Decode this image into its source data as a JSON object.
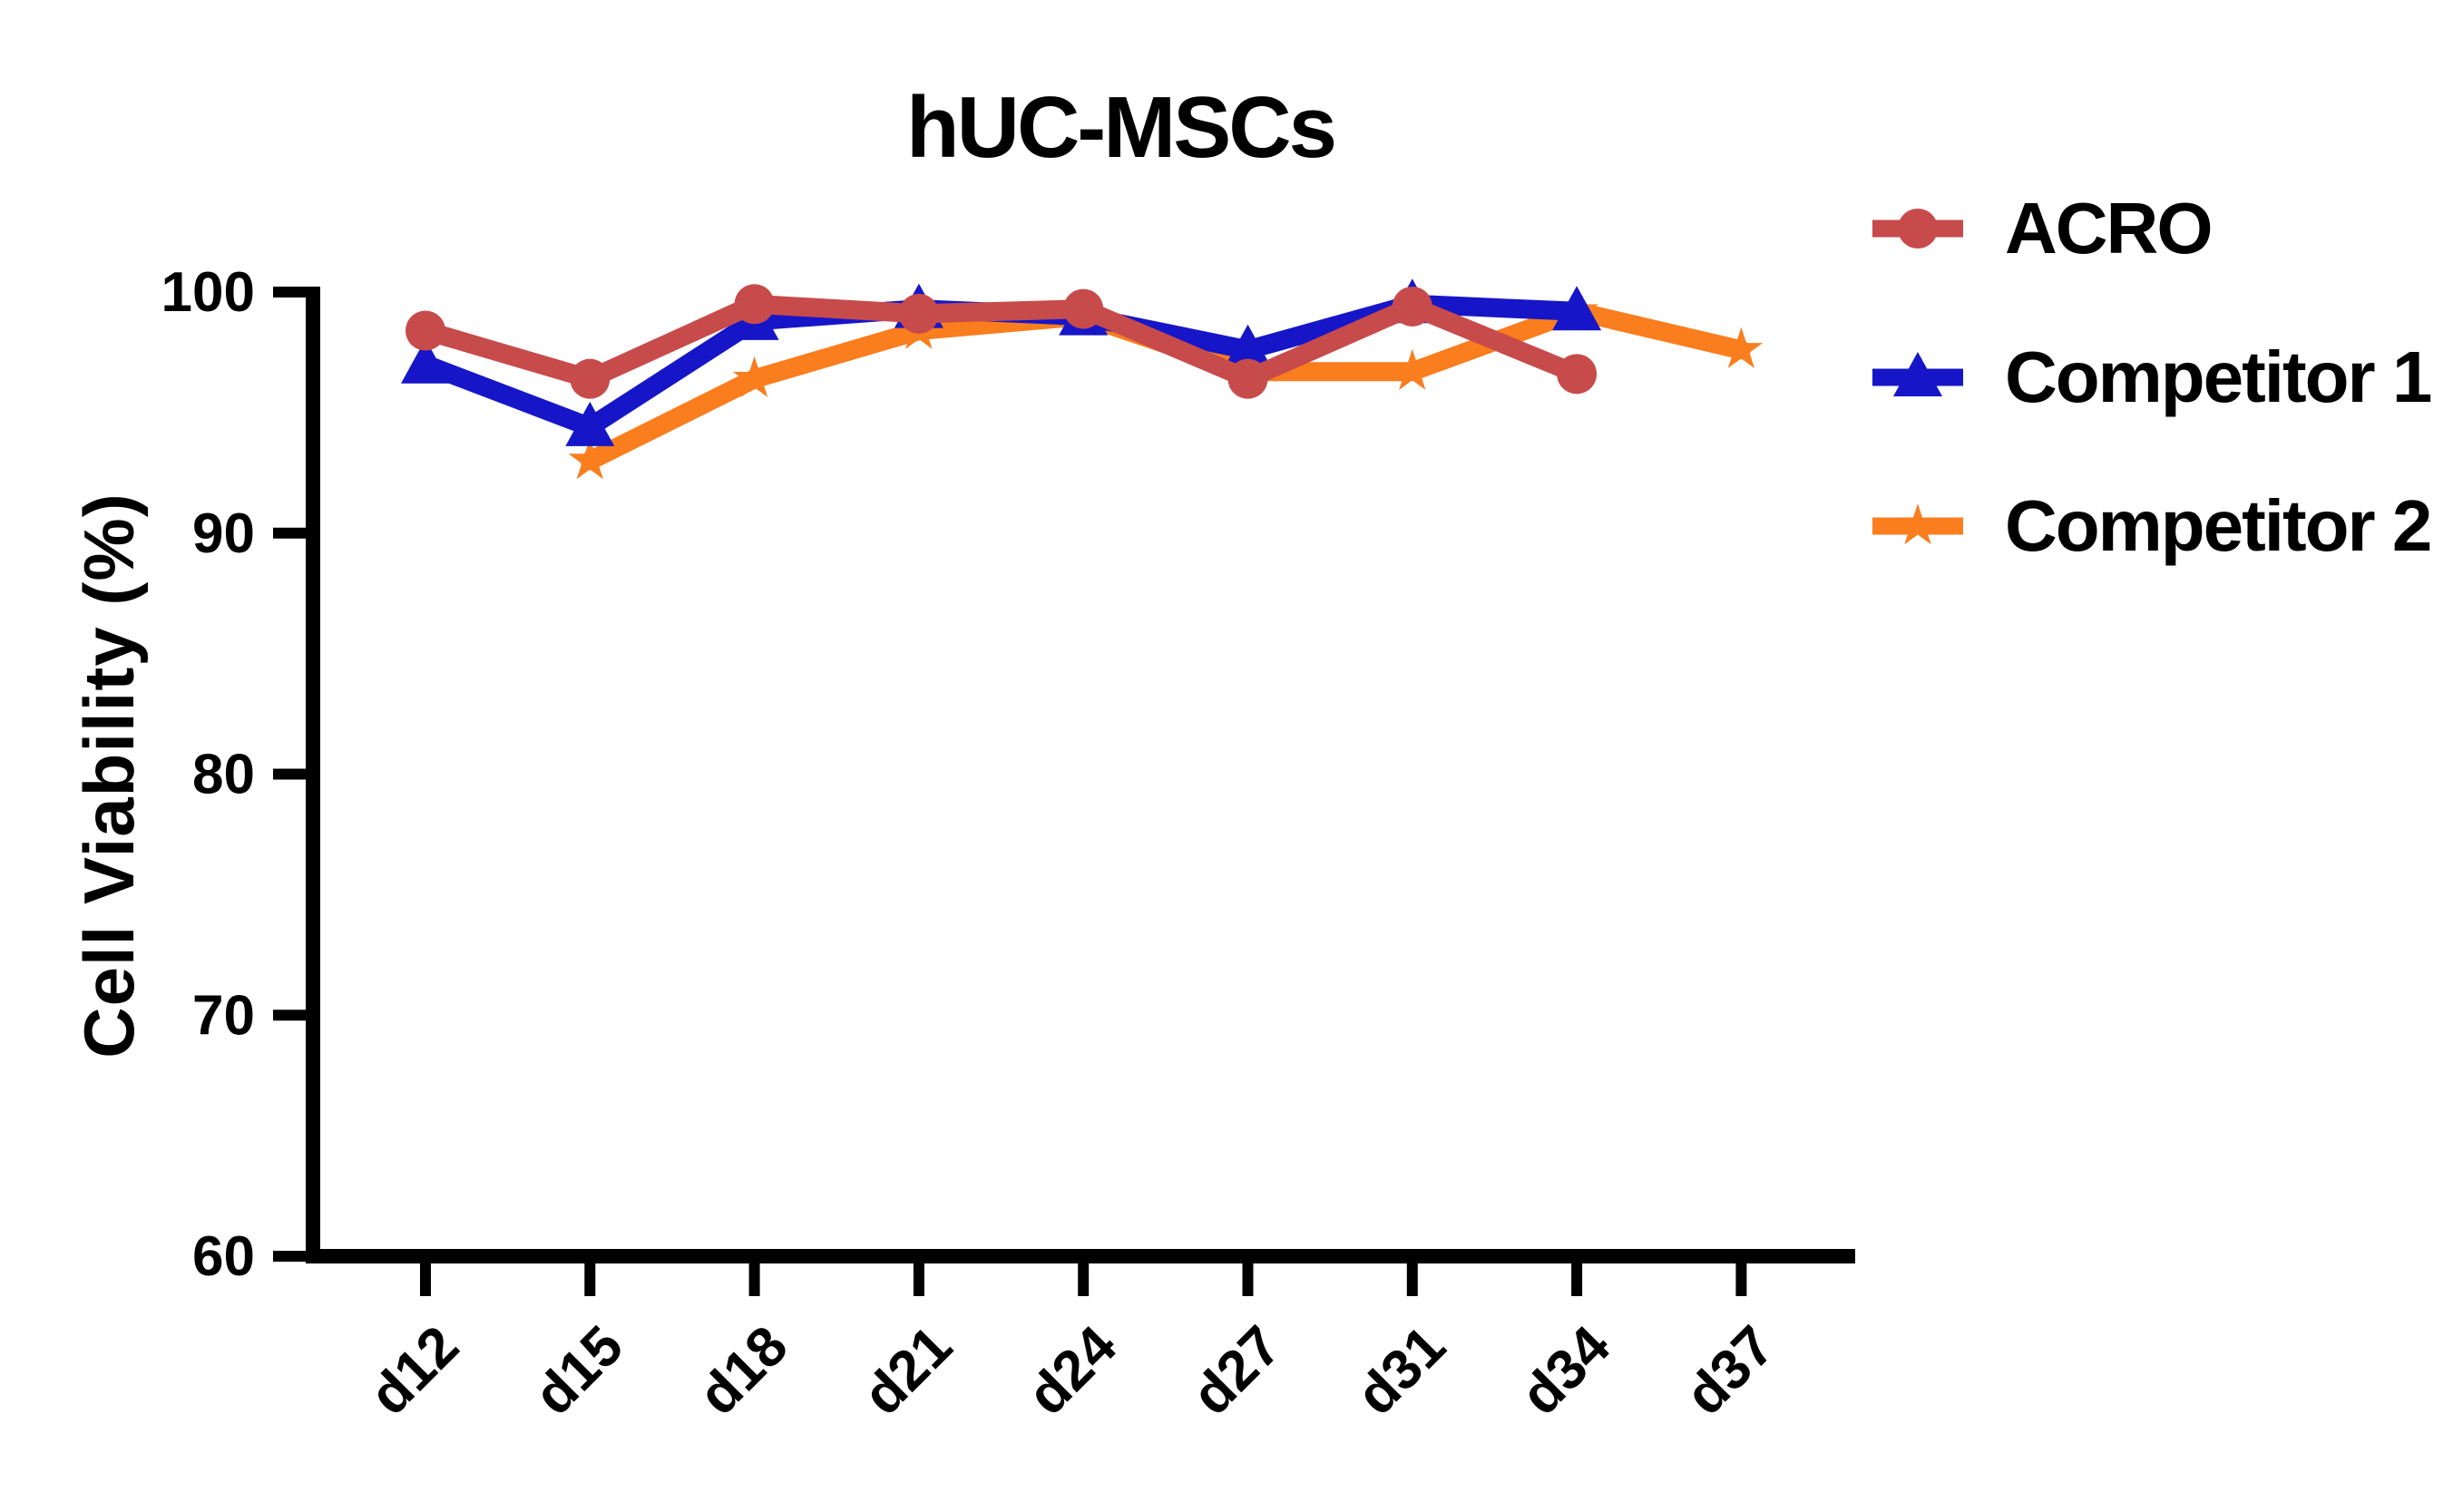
{
  "chart_data": {
    "type": "line",
    "title": "hUC-MSCs",
    "ylabel": "Cell Viability (%)",
    "xlabel": "",
    "categories": [
      "d12",
      "d15",
      "d18",
      "d21",
      "d24",
      "d27",
      "d31",
      "d34",
      "d37"
    ],
    "ylim": [
      60,
      100
    ],
    "yticks": [
      100,
      90,
      80,
      70,
      60
    ],
    "grid": false,
    "legend_position": "right",
    "axis_color": "#000000",
    "series": [
      {
        "name": "ACRO",
        "color": "#C74B4B",
        "marker": "circle",
        "values": [
          98.4,
          96.4,
          99.5,
          99.1,
          99.3,
          96.4,
          99.4,
          96.6,
          null
        ]
      },
      {
        "name": "Competitor 1",
        "color": "#1616C8",
        "marker": "triangle",
        "values": [
          97.0,
          94.4,
          98.8,
          99.3,
          99.0,
          97.6,
          99.5,
          99.2,
          null
        ]
      },
      {
        "name": "Competitor 2",
        "color": "#FA7D1E",
        "marker": "star",
        "values": [
          null,
          93.0,
          96.4,
          98.4,
          99.0,
          96.7,
          96.7,
          99.2,
          97.6
        ]
      }
    ]
  }
}
